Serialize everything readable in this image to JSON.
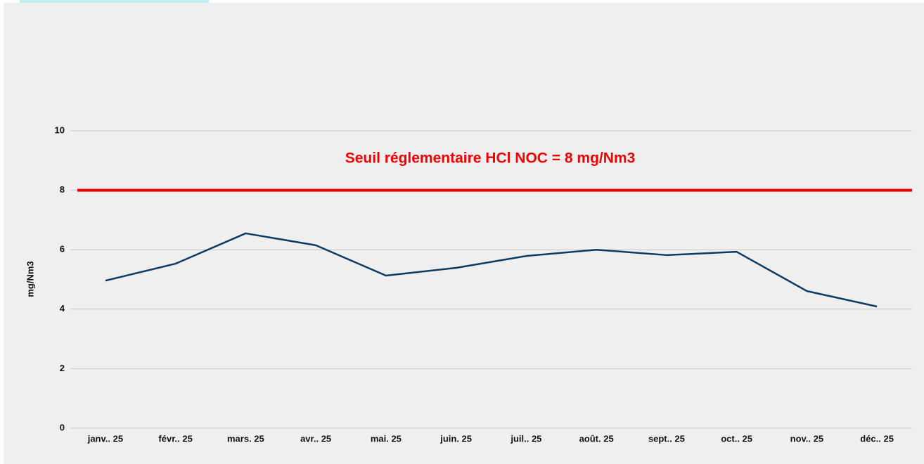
{
  "chart_data": {
    "type": "line",
    "y_label": "mg/Nm3",
    "categories": [
      "janv.. 25",
      "févr.. 25",
      "mars. 25",
      "avr.. 25",
      "mai. 25",
      "juin. 25",
      "juil.. 25",
      "août. 25",
      "sept.. 25",
      "oct.. 25",
      "nov.. 25",
      "déc.. 25"
    ],
    "values": [
      4.96,
      5.53,
      6.55,
      6.15,
      5.13,
      5.39,
      5.79,
      6.0,
      5.82,
      5.93,
      4.61,
      4.09
    ],
    "color": "#0e3a66",
    "threshold": {
      "value": 8,
      "label": "Seuil réglementaire HCl NOC = 8 mg/Nm3",
      "color": "#ee0000"
    },
    "ylim": [
      0,
      10
    ],
    "yticks": [
      0,
      2,
      4,
      6,
      8,
      10
    ],
    "grid": true
  }
}
